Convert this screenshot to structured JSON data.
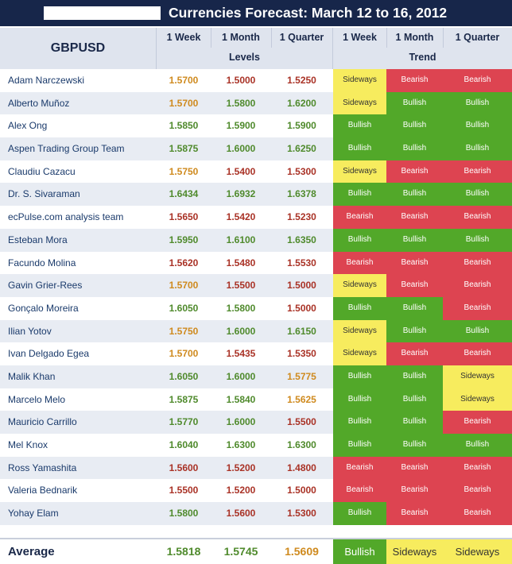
{
  "title": "Currencies Forecast: March 12 to 16, 2012",
  "header": {
    "pair": "GBPUSD",
    "periods": [
      "1 Week",
      "1 Month",
      "1 Quarter"
    ],
    "levels_label": "Levels",
    "trend_label": "Trend"
  },
  "colors": {
    "bullish": "#52a829",
    "bearish": "#dd4451",
    "sideways": "#f7ec5e",
    "level_green": "#4f8a2c",
    "level_red": "#a93226",
    "level_orange": "#cf8a1e"
  },
  "rows": [
    {
      "name": "Adam Narczewski",
      "levels": [
        "1.5700",
        "1.5000",
        "1.5250"
      ],
      "level_colors": [
        "orange",
        "red",
        "red"
      ],
      "trends": [
        "Sideways",
        "Bearish",
        "Bearish"
      ]
    },
    {
      "name": "Alberto Muñoz",
      "levels": [
        "1.5700",
        "1.5800",
        "1.6200"
      ],
      "level_colors": [
        "orange",
        "green",
        "green"
      ],
      "trends": [
        "Sideways",
        "Bullish",
        "Bullish"
      ]
    },
    {
      "name": "Alex Ong",
      "levels": [
        "1.5850",
        "1.5900",
        "1.5900"
      ],
      "level_colors": [
        "green",
        "green",
        "green"
      ],
      "trends": [
        "Bullish",
        "Bullish",
        "Bullish"
      ]
    },
    {
      "name": "Aspen Trading Group Team",
      "levels": [
        "1.5875",
        "1.6000",
        "1.6250"
      ],
      "level_colors": [
        "green",
        "green",
        "green"
      ],
      "trends": [
        "Bullish",
        "Bullish",
        "Bullish"
      ]
    },
    {
      "name": "Claudiu Cazacu",
      "levels": [
        "1.5750",
        "1.5400",
        "1.5300"
      ],
      "level_colors": [
        "orange",
        "red",
        "red"
      ],
      "trends": [
        "Sideways",
        "Bearish",
        "Bearish"
      ]
    },
    {
      "name": "Dr. S. Sivaraman",
      "levels": [
        "1.6434",
        "1.6932",
        "1.6378"
      ],
      "level_colors": [
        "green",
        "green",
        "green"
      ],
      "trends": [
        "Bullish",
        "Bullish",
        "Bullish"
      ]
    },
    {
      "name": "ecPulse.com analysis team",
      "levels": [
        "1.5650",
        "1.5420",
        "1.5230"
      ],
      "level_colors": [
        "red",
        "red",
        "red"
      ],
      "trends": [
        "Bearish",
        "Bearish",
        "Bearish"
      ]
    },
    {
      "name": "Esteban Mora",
      "levels": [
        "1.5950",
        "1.6100",
        "1.6350"
      ],
      "level_colors": [
        "green",
        "green",
        "green"
      ],
      "trends": [
        "Bullish",
        "Bullish",
        "Bullish"
      ]
    },
    {
      "name": "Facundo Molina",
      "levels": [
        "1.5620",
        "1.5480",
        "1.5530"
      ],
      "level_colors": [
        "red",
        "red",
        "red"
      ],
      "trends": [
        "Bearish",
        "Bearish",
        "Bearish"
      ]
    },
    {
      "name": "Gavin Grier-Rees",
      "levels": [
        "1.5700",
        "1.5500",
        "1.5000"
      ],
      "level_colors": [
        "orange",
        "red",
        "red"
      ],
      "trends": [
        "Sideways",
        "Bearish",
        "Bearish"
      ]
    },
    {
      "name": "Gonçalo Moreira",
      "levels": [
        "1.6050",
        "1.5800",
        "1.5000"
      ],
      "level_colors": [
        "green",
        "green",
        "red"
      ],
      "trends": [
        "Bullish",
        "Bullish",
        "Bearish"
      ]
    },
    {
      "name": "Ilian Yotov",
      "levels": [
        "1.5750",
        "1.6000",
        "1.6150"
      ],
      "level_colors": [
        "orange",
        "green",
        "green"
      ],
      "trends": [
        "Sideways",
        "Bullish",
        "Bullish"
      ]
    },
    {
      "name": "Ivan Delgado Egea",
      "levels": [
        "1.5700",
        "1.5435",
        "1.5350"
      ],
      "level_colors": [
        "orange",
        "red",
        "red"
      ],
      "trends": [
        "Sideways",
        "Bearish",
        "Bearish"
      ]
    },
    {
      "name": "Malik Khan",
      "levels": [
        "1.6050",
        "1.6000",
        "1.5775"
      ],
      "level_colors": [
        "green",
        "green",
        "orange"
      ],
      "trends": [
        "Bullish",
        "Bullish",
        "Sideways"
      ]
    },
    {
      "name": "Marcelo Melo",
      "levels": [
        "1.5875",
        "1.5840",
        "1.5625"
      ],
      "level_colors": [
        "green",
        "green",
        "orange"
      ],
      "trends": [
        "Bullish",
        "Bullish",
        "Sideways"
      ]
    },
    {
      "name": "Mauricio Carrillo",
      "levels": [
        "1.5770",
        "1.6000",
        "1.5500"
      ],
      "level_colors": [
        "green",
        "green",
        "red"
      ],
      "trends": [
        "Bullish",
        "Bullish",
        "Bearish"
      ]
    },
    {
      "name": "Mel Knox",
      "levels": [
        "1.6040",
        "1.6300",
        "1.6300"
      ],
      "level_colors": [
        "green",
        "green",
        "green"
      ],
      "trends": [
        "Bullish",
        "Bullish",
        "Bullish"
      ]
    },
    {
      "name": "Ross Yamashita",
      "levels": [
        "1.5600",
        "1.5200",
        "1.4800"
      ],
      "level_colors": [
        "red",
        "red",
        "red"
      ],
      "trends": [
        "Bearish",
        "Bearish",
        "Bearish"
      ]
    },
    {
      "name": "Valeria Bednarik",
      "levels": [
        "1.5500",
        "1.5200",
        "1.5000"
      ],
      "level_colors": [
        "red",
        "red",
        "red"
      ],
      "trends": [
        "Bearish",
        "Bearish",
        "Bearish"
      ]
    },
    {
      "name": "Yohay Elam",
      "levels": [
        "1.5800",
        "1.5600",
        "1.5300"
      ],
      "level_colors": [
        "green",
        "red",
        "red"
      ],
      "trends": [
        "Bullish",
        "Bearish",
        "Bearish"
      ]
    }
  ],
  "average": {
    "label": "Average",
    "levels": [
      "1.5818",
      "1.5745",
      "1.5609"
    ],
    "level_colors": [
      "green",
      "green",
      "orange"
    ],
    "trends": [
      "Bullish",
      "Sideways",
      "Sideways"
    ]
  }
}
